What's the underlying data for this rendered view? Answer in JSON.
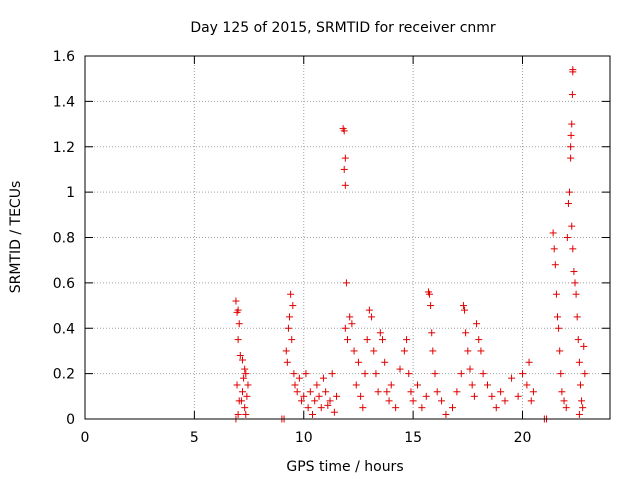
{
  "chart_data": {
    "type": "scatter",
    "title": "Day 125 of 2015, SRMTID for receiver cnmr",
    "xlabel": "GPS time / hours",
    "ylabel": "SRMTID / TECUs",
    "xlim": [
      0,
      24
    ],
    "ylim": [
      0,
      1.6
    ],
    "xticks": [
      0,
      5,
      10,
      15,
      20
    ],
    "xtick_labels": [
      "0",
      "5",
      "10",
      "15",
      "20"
    ],
    "yticks": [
      0,
      0.2,
      0.4,
      0.6,
      0.8,
      1.0,
      1.2,
      1.4,
      1.6
    ],
    "ytick_labels": [
      "0",
      "0.2",
      "0.4",
      "0.6",
      "0.8",
      "1",
      "1.2",
      "1.4",
      "1.6"
    ],
    "grid": true,
    "marker": "+",
    "colors": {
      "points": "#e00000",
      "axis": "#000000",
      "grid": "#a0a0a0"
    },
    "series": [
      {
        "name": "SRMTID",
        "points": [
          [
            6.9,
            0.52
          ],
          [
            6.95,
            0.47
          ],
          [
            7.0,
            0.48
          ],
          [
            7.05,
            0.42
          ],
          [
            7.0,
            0.35
          ],
          [
            7.1,
            0.28
          ],
          [
            6.95,
            0.15
          ],
          [
            7.05,
            0.08
          ],
          [
            7.0,
            0.02
          ],
          [
            6.9,
            0.0
          ],
          [
            7.2,
            0.26
          ],
          [
            7.3,
            0.22
          ],
          [
            7.35,
            0.2
          ],
          [
            7.25,
            0.18
          ],
          [
            7.4,
            0.1
          ],
          [
            7.3,
            0.05
          ],
          [
            7.2,
            0.12
          ],
          [
            7.35,
            0.02
          ],
          [
            7.45,
            0.15
          ],
          [
            7.15,
            0.08
          ],
          [
            9.0,
            0.0
          ],
          [
            9.1,
            0.0
          ],
          [
            9.2,
            0.3
          ],
          [
            9.3,
            0.4
          ],
          [
            9.4,
            0.55
          ],
          [
            9.5,
            0.5
          ],
          [
            9.35,
            0.45
          ],
          [
            9.45,
            0.35
          ],
          [
            9.25,
            0.25
          ],
          [
            9.55,
            0.2
          ],
          [
            9.6,
            0.15
          ],
          [
            9.7,
            0.12
          ],
          [
            9.8,
            0.18
          ],
          [
            9.9,
            0.08
          ],
          [
            10.0,
            0.1
          ],
          [
            10.1,
            0.2
          ],
          [
            10.2,
            0.05
          ],
          [
            10.3,
            0.12
          ],
          [
            10.4,
            0.02
          ],
          [
            10.5,
            0.08
          ],
          [
            10.6,
            0.15
          ],
          [
            10.7,
            0.1
          ],
          [
            10.8,
            0.05
          ],
          [
            10.9,
            0.18
          ],
          [
            11.0,
            0.12
          ],
          [
            11.1,
            0.06
          ],
          [
            11.2,
            0.08
          ],
          [
            11.3,
            0.2
          ],
          [
            11.4,
            0.03
          ],
          [
            11.5,
            0.1
          ],
          [
            11.8,
            1.28
          ],
          [
            11.85,
            1.27
          ],
          [
            11.9,
            1.15
          ],
          [
            11.85,
            1.1
          ],
          [
            11.9,
            1.03
          ],
          [
            11.95,
            0.6
          ],
          [
            11.9,
            0.4
          ],
          [
            12.0,
            0.35
          ],
          [
            12.1,
            0.45
          ],
          [
            12.2,
            0.42
          ],
          [
            12.3,
            0.3
          ],
          [
            12.4,
            0.15
          ],
          [
            12.5,
            0.25
          ],
          [
            12.6,
            0.1
          ],
          [
            12.7,
            0.05
          ],
          [
            12.8,
            0.2
          ],
          [
            12.9,
            0.35
          ],
          [
            13.0,
            0.48
          ],
          [
            13.1,
            0.45
          ],
          [
            13.2,
            0.3
          ],
          [
            13.3,
            0.2
          ],
          [
            13.4,
            0.12
          ],
          [
            13.5,
            0.38
          ],
          [
            13.6,
            0.35
          ],
          [
            13.7,
            0.25
          ],
          [
            13.8,
            0.12
          ],
          [
            13.9,
            0.08
          ],
          [
            14.0,
            0.15
          ],
          [
            14.2,
            0.05
          ],
          [
            14.4,
            0.22
          ],
          [
            14.6,
            0.3
          ],
          [
            14.7,
            0.35
          ],
          [
            14.8,
            0.2
          ],
          [
            14.9,
            0.12
          ],
          [
            15.0,
            0.08
          ],
          [
            15.2,
            0.15
          ],
          [
            15.4,
            0.05
          ],
          [
            15.6,
            0.1
          ],
          [
            15.7,
            0.56
          ],
          [
            15.75,
            0.55
          ],
          [
            15.8,
            0.5
          ],
          [
            15.85,
            0.38
          ],
          [
            15.9,
            0.3
          ],
          [
            16.0,
            0.2
          ],
          [
            16.1,
            0.12
          ],
          [
            16.3,
            0.08
          ],
          [
            16.5,
            0.02
          ],
          [
            16.8,
            0.05
          ],
          [
            17.0,
            0.12
          ],
          [
            17.2,
            0.2
          ],
          [
            17.3,
            0.5
          ],
          [
            17.35,
            0.48
          ],
          [
            17.4,
            0.38
          ],
          [
            17.5,
            0.3
          ],
          [
            17.6,
            0.22
          ],
          [
            17.7,
            0.15
          ],
          [
            17.8,
            0.1
          ],
          [
            17.9,
            0.42
          ],
          [
            18.0,
            0.35
          ],
          [
            18.1,
            0.3
          ],
          [
            18.2,
            0.2
          ],
          [
            18.4,
            0.15
          ],
          [
            18.6,
            0.1
          ],
          [
            18.8,
            0.05
          ],
          [
            19.0,
            0.12
          ],
          [
            19.2,
            0.08
          ],
          [
            19.5,
            0.18
          ],
          [
            19.8,
            0.1
          ],
          [
            20.0,
            0.2
          ],
          [
            20.2,
            0.15
          ],
          [
            20.3,
            0.25
          ],
          [
            20.4,
            0.08
          ],
          [
            20.5,
            0.12
          ],
          [
            21.0,
            0.0
          ],
          [
            21.1,
            0.0
          ],
          [
            21.4,
            0.82
          ],
          [
            21.45,
            0.75
          ],
          [
            21.5,
            0.68
          ],
          [
            21.55,
            0.55
          ],
          [
            21.6,
            0.45
          ],
          [
            21.65,
            0.4
          ],
          [
            21.7,
            0.3
          ],
          [
            21.75,
            0.2
          ],
          [
            21.8,
            0.12
          ],
          [
            21.9,
            0.08
          ],
          [
            22.0,
            0.05
          ],
          [
            22.05,
            0.8
          ],
          [
            22.1,
            0.95
          ],
          [
            22.15,
            1.0
          ],
          [
            22.2,
            1.2
          ],
          [
            22.22,
            1.25
          ],
          [
            22.25,
            1.3
          ],
          [
            22.3,
            1.53
          ],
          [
            22.3,
            1.54
          ],
          [
            22.28,
            1.43
          ],
          [
            22.2,
            1.15
          ],
          [
            22.25,
            0.85
          ],
          [
            22.3,
            0.75
          ],
          [
            22.35,
            0.65
          ],
          [
            22.4,
            0.6
          ],
          [
            22.45,
            0.55
          ],
          [
            22.5,
            0.45
          ],
          [
            22.55,
            0.35
          ],
          [
            22.6,
            0.25
          ],
          [
            22.65,
            0.15
          ],
          [
            22.7,
            0.08
          ],
          [
            22.75,
            0.05
          ],
          [
            22.8,
            0.32
          ],
          [
            22.85,
            0.2
          ],
          [
            22.6,
            0.02
          ]
        ]
      }
    ]
  }
}
